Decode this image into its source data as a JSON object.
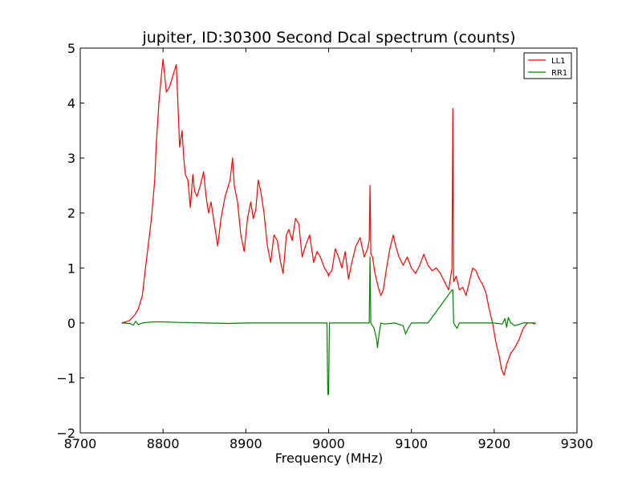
{
  "chart_data": {
    "type": "line",
    "title": "jupiter, ID:30300 Second Dcal spectrum (counts)",
    "xlabel": "Frequency (MHz)",
    "ylabel": "",
    "xlim": [
      8700,
      9300
    ],
    "ylim": [
      -2,
      5
    ],
    "xticks": [
      8700,
      8800,
      8900,
      9000,
      9100,
      9200,
      9300
    ],
    "yticks": [
      -2,
      -1,
      0,
      1,
      2,
      3,
      4,
      5
    ],
    "grid": false,
    "legend_position": "top-right",
    "series": [
      {
        "name": "LL1",
        "color": "#ff0000",
        "x": [
          8750,
          8755,
          8760,
          8763,
          8766,
          8770,
          8775,
          8778,
          8782,
          8786,
          8790,
          8792,
          8795,
          8798,
          8800,
          8802,
          8804,
          8808,
          8812,
          8816,
          8818,
          8820,
          8823,
          8825,
          8827,
          8830,
          8833,
          8836,
          8838,
          8841,
          8845,
          8849,
          8852,
          8855,
          8858,
          8862,
          8866,
          8870,
          8875,
          8879,
          8881,
          8884,
          8886,
          8890,
          8894,
          8898,
          8902,
          8906,
          8909,
          8912,
          8915,
          8918,
          8922,
          8926,
          8930,
          8934,
          8938,
          8942,
          8945,
          8949,
          8952,
          8956,
          8960,
          8964,
          8968,
          8972,
          8977,
          8982,
          8986,
          8990,
          8995,
          8999,
          9000,
          9001,
          9004,
          9008,
          9012,
          9016,
          9020,
          9024,
          9028,
          9033,
          9038,
          9043,
          9047,
          9049,
          9050,
          9051,
          9053,
          9056,
          9060,
          9063,
          9066,
          9070,
          9074,
          9078,
          9081,
          9085,
          9090,
          9095,
          9100,
          9105,
          9110,
          9115,
          9120,
          9125,
          9130,
          9135,
          9140,
          9145,
          9149,
          9150,
          9151,
          9154,
          9158,
          9162,
          9166,
          9170,
          9174,
          9178,
          9182,
          9186,
          9190,
          9194,
          9198,
          9202,
          9206,
          9209,
          9212,
          9215,
          9220,
          9225,
          9230,
          9235,
          9240,
          9245,
          9250
        ],
        "y": [
          0.0,
          0.02,
          0.05,
          0.1,
          0.15,
          0.25,
          0.5,
          0.9,
          1.4,
          1.9,
          2.6,
          3.3,
          4.0,
          4.5,
          4.8,
          4.5,
          4.2,
          4.3,
          4.5,
          4.7,
          4.0,
          3.2,
          3.5,
          3.0,
          2.7,
          2.6,
          2.1,
          2.7,
          2.4,
          2.3,
          2.5,
          2.75,
          2.3,
          2.0,
          2.2,
          1.8,
          1.4,
          1.9,
          2.3,
          2.5,
          2.6,
          3.0,
          2.5,
          2.2,
          1.6,
          1.3,
          1.9,
          2.2,
          1.9,
          2.05,
          2.6,
          2.4,
          2.0,
          1.4,
          1.1,
          1.6,
          1.5,
          1.1,
          0.9,
          1.6,
          1.7,
          1.5,
          1.9,
          1.8,
          1.2,
          1.4,
          1.6,
          1.1,
          1.3,
          1.2,
          1.0,
          0.9,
          0.85,
          0.9,
          0.95,
          1.35,
          1.2,
          1.0,
          1.3,
          0.8,
          1.1,
          1.4,
          1.55,
          1.2,
          1.35,
          1.5,
          2.5,
          1.25,
          1.2,
          0.9,
          0.65,
          0.5,
          0.6,
          1.0,
          1.35,
          1.6,
          1.4,
          1.2,
          1.05,
          1.2,
          1.0,
          0.9,
          1.05,
          1.25,
          1.05,
          0.95,
          1.0,
          0.9,
          0.75,
          0.6,
          1.0,
          3.9,
          0.75,
          0.85,
          0.6,
          0.65,
          0.5,
          0.75,
          1.0,
          0.95,
          0.8,
          0.7,
          0.55,
          0.25,
          0.0,
          -0.35,
          -0.6,
          -0.85,
          -0.95,
          -0.75,
          -0.55,
          -0.45,
          -0.3,
          -0.1,
          0.0,
          0.0,
          -0.02
        ]
      },
      {
        "name": "RR1",
        "color": "#008000",
        "x": [
          8750,
          8760,
          8764,
          8767,
          8770,
          8775,
          8780,
          8790,
          8800,
          8820,
          8850,
          8880,
          8900,
          8950,
          8998,
          8999,
          9000,
          9001,
          9002,
          9020,
          9040,
          9049,
          9050,
          9051,
          9055,
          9058,
          9059,
          9061,
          9063,
          9067,
          9080,
          9090,
          9093,
          9096,
          9100,
          9120,
          9149,
          9150,
          9151,
          9155,
          9158,
          9160,
          9170,
          9185,
          9200,
          9210,
          9213,
          9215,
          9217,
          9220,
          9225,
          9235,
          9250
        ],
        "y": [
          0.0,
          -0.01,
          -0.04,
          0.03,
          -0.03,
          0.0,
          0.01,
          0.02,
          0.02,
          0.01,
          0.0,
          -0.01,
          0.0,
          0.0,
          0.0,
          -1.3,
          -1.3,
          0.0,
          0.0,
          0.0,
          0.0,
          0.0,
          1.2,
          0.0,
          -0.1,
          -0.3,
          -0.45,
          -0.2,
          0.0,
          -0.02,
          0.0,
          -0.05,
          -0.2,
          -0.1,
          0.0,
          0.0,
          0.6,
          0.6,
          0.0,
          -0.1,
          0.0,
          0.0,
          0.0,
          0.0,
          0.0,
          -0.02,
          0.08,
          -0.08,
          0.1,
          0.0,
          -0.05,
          0.0,
          0.0
        ]
      }
    ]
  }
}
